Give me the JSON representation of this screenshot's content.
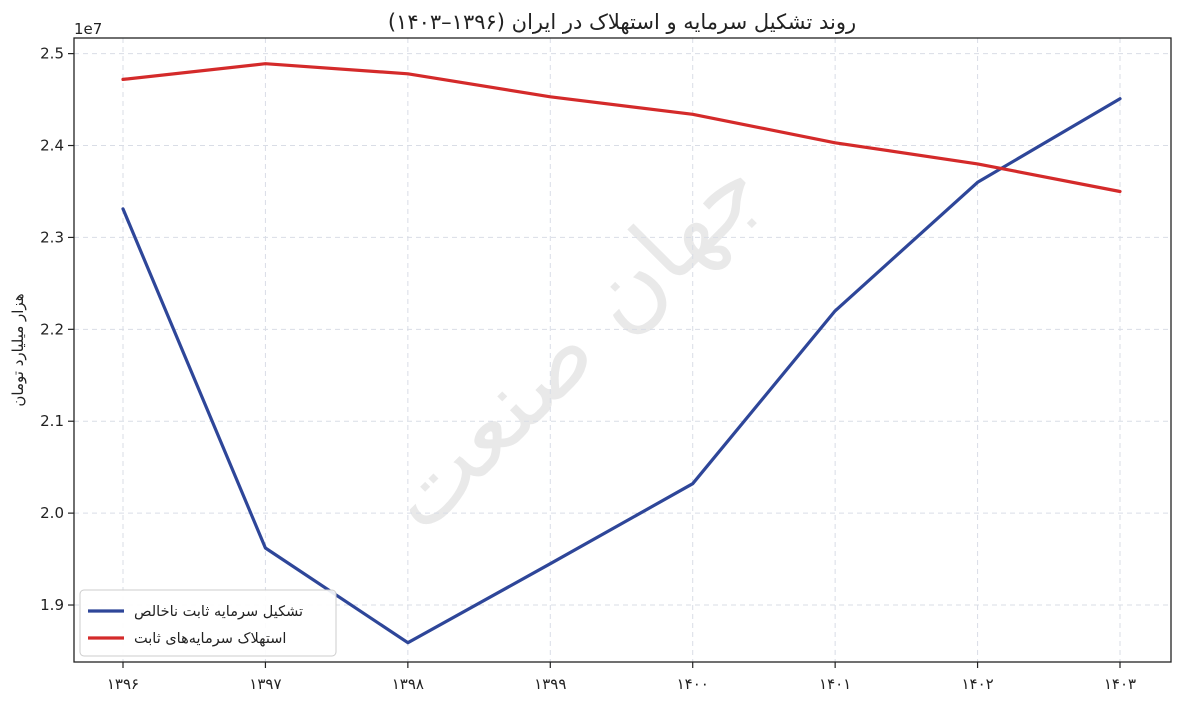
{
  "chart_data": {
    "type": "line",
    "title": "روند تشکیل سرمایه و استهلاک در ایران (۱۳۹۶–۱۴۰۳)",
    "xlabel": "",
    "ylabel": "هزار میلیارد تومان",
    "y_scale_label": "1e7",
    "watermark": "جهان صنعت",
    "categories": [
      "۱۳۹۶",
      "۱۳۹۷",
      "۱۳۹۸",
      "۱۳۹۹",
      "۱۴۰۰",
      "۱۴۰۱",
      "۱۴۰۲",
      "۱۴۰۳"
    ],
    "yticks": [
      "1.9",
      "2.0",
      "2.1",
      "2.2",
      "2.3",
      "2.4",
      "2.5"
    ],
    "ylim": [
      1.838,
      2.517
    ],
    "grid": true,
    "legend_position": "lower-left",
    "series": [
      {
        "name": "تشکیل سرمایه ثابت ناخالص",
        "color": "#2e4699",
        "values": [
          2.331,
          1.962,
          1.859,
          1.945,
          2.032,
          2.22,
          2.36,
          2.451
        ]
      },
      {
        "name": "استهلاک سرمایه‌های ثابت",
        "color": "#d42a2a",
        "values": [
          2.472,
          2.489,
          2.478,
          2.453,
          2.434,
          2.403,
          2.38,
          2.35
        ]
      }
    ]
  }
}
